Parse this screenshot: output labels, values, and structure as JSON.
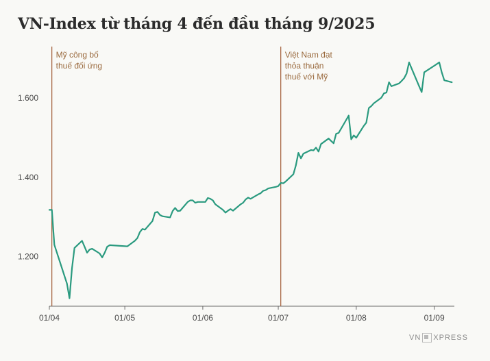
{
  "title": "VN-Index từ tháng 4 đến đầu tháng 9/2025",
  "logo": {
    "left": "VN",
    "right": "XPRESS"
  },
  "colors": {
    "line": "#2a9a7f",
    "event_line": "#a05a35",
    "annotation": "#9a6a3e",
    "background": "#f9f9f6"
  },
  "chart_data": {
    "type": "line",
    "title": "VN-Index từ tháng 4 đến đầu tháng 9/2025",
    "xlabel": "",
    "ylabel": "",
    "xlim": [
      "2025-04-01",
      "2025-09-09"
    ],
    "ylim": [
      1075,
      1730
    ],
    "x_ticks": [
      {
        "date": "2025-04-01",
        "label": "01/04"
      },
      {
        "date": "2025-05-01",
        "label": "01/05"
      },
      {
        "date": "2025-06-01",
        "label": "01/06"
      },
      {
        "date": "2025-07-01",
        "label": "01/07"
      },
      {
        "date": "2025-08-01",
        "label": "01/08"
      },
      {
        "date": "2025-09-01",
        "label": "01/09"
      }
    ],
    "y_ticks": [
      {
        "value": 1200,
        "label": "1.200"
      },
      {
        "value": 1400,
        "label": "1.400"
      },
      {
        "value": 1600,
        "label": "1.600"
      }
    ],
    "grid": false,
    "annotations": [
      {
        "date": "2025-04-02",
        "lines": [
          "Mỹ công bố",
          "thuế đối ứng"
        ]
      },
      {
        "date": "2025-07-02",
        "lines": [
          "Việt Nam đạt",
          "thỏa thuận",
          "thuế với Mỹ"
        ]
      }
    ],
    "series": [
      {
        "x": [
          "2025-04-01",
          "2025-04-02",
          "2025-04-03",
          "2025-04-08",
          "2025-04-09",
          "2025-04-10",
          "2025-04-11",
          "2025-04-14",
          "2025-04-15",
          "2025-04-16",
          "2025-04-17",
          "2025-04-18",
          "2025-04-21",
          "2025-04-22",
          "2025-04-23",
          "2025-04-24",
          "2025-04-25",
          "2025-05-02",
          "2025-05-05",
          "2025-05-06",
          "2025-05-07",
          "2025-05-08",
          "2025-05-09",
          "2025-05-12",
          "2025-05-13",
          "2025-05-14",
          "2025-05-15",
          "2025-05-16",
          "2025-05-19",
          "2025-05-20",
          "2025-05-21",
          "2025-05-22",
          "2025-05-23",
          "2025-05-26",
          "2025-05-27",
          "2025-05-28",
          "2025-05-29",
          "2025-05-30",
          "2025-06-02",
          "2025-06-03",
          "2025-06-04",
          "2025-06-05",
          "2025-06-06",
          "2025-06-09",
          "2025-06-10",
          "2025-06-11",
          "2025-06-12",
          "2025-06-13",
          "2025-06-16",
          "2025-06-17",
          "2025-06-18",
          "2025-06-19",
          "2025-06-20",
          "2025-06-23",
          "2025-06-24",
          "2025-06-25",
          "2025-06-26",
          "2025-06-27",
          "2025-06-30",
          "2025-07-01",
          "2025-07-02",
          "2025-07-03",
          "2025-07-04",
          "2025-07-07",
          "2025-07-08",
          "2025-07-09",
          "2025-07-10",
          "2025-07-11",
          "2025-07-14",
          "2025-07-15",
          "2025-07-16",
          "2025-07-17",
          "2025-07-18",
          "2025-07-21",
          "2025-07-22",
          "2025-07-23",
          "2025-07-24",
          "2025-07-25",
          "2025-07-28",
          "2025-07-29",
          "2025-07-30",
          "2025-07-31",
          "2025-08-01",
          "2025-08-04",
          "2025-08-05",
          "2025-08-06",
          "2025-08-07",
          "2025-08-08",
          "2025-08-11",
          "2025-08-12",
          "2025-08-13",
          "2025-08-14",
          "2025-08-15",
          "2025-08-18",
          "2025-08-19",
          "2025-08-20",
          "2025-08-21",
          "2025-08-22",
          "2025-08-25",
          "2025-08-26",
          "2025-08-27",
          "2025-08-28",
          "2025-09-03",
          "2025-09-04",
          "2025-09-05",
          "2025-09-08"
        ],
        "values": [
          1318,
          1318,
          1230,
          1132,
          1095,
          1170,
          1222,
          1240,
          1225,
          1210,
          1218,
          1220,
          1208,
          1198,
          1210,
          1225,
          1229,
          1226,
          1240,
          1247,
          1262,
          1270,
          1268,
          1290,
          1311,
          1313,
          1305,
          1302,
          1299,
          1315,
          1323,
          1315,
          1316,
          1338,
          1342,
          1342,
          1336,
          1338,
          1338,
          1348,
          1346,
          1342,
          1332,
          1318,
          1311,
          1316,
          1320,
          1316,
          1332,
          1336,
          1344,
          1349,
          1346,
          1357,
          1360,
          1366,
          1368,
          1372,
          1376,
          1378,
          1386,
          1385,
          1390,
          1408,
          1430,
          1462,
          1448,
          1460,
          1469,
          1468,
          1475,
          1465,
          1484,
          1498,
          1492,
          1486,
          1510,
          1512,
          1545,
          1556,
          1496,
          1506,
          1500,
          1530,
          1538,
          1575,
          1580,
          1587,
          1601,
          1612,
          1614,
          1640,
          1630,
          1637,
          1643,
          1650,
          1662,
          1690,
          1645,
          1630,
          1615,
          1665,
          1690,
          1665,
          1645,
          1640
        ]
      }
    ]
  }
}
